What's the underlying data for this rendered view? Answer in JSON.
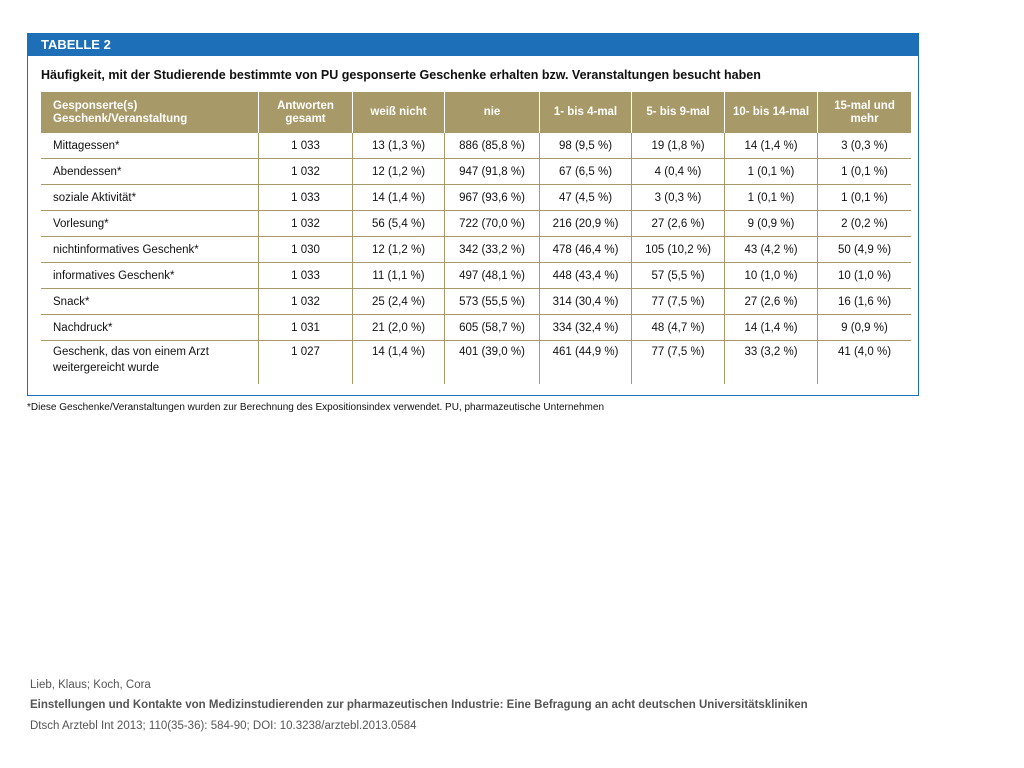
{
  "header": {
    "label": "TABELLE 2",
    "title": "Häufigkeit, mit der Studierende bestimmte von PU gesponserte Geschenke erhalten bzw. Veranstaltungen besucht haben"
  },
  "table": {
    "columns": [
      "Gesponserte(s)\nGeschenk/Veranstaltung",
      "Antworten\ngesamt",
      "weiß nicht",
      "nie",
      "1- bis 4-mal",
      "5- bis 9-mal",
      "10- bis 14-mal",
      "15-mal und\nmehr"
    ],
    "rows": [
      [
        "Mittagessen*",
        "1 033",
        "13 (1,3 %)",
        "886 (85,8 %)",
        "98 (9,5 %)",
        "19 (1,8 %)",
        "14 (1,4 %)",
        "3 (0,3 %)"
      ],
      [
        "Abendessen*",
        "1 032",
        "12 (1,2 %)",
        "947 (91,8 %)",
        "67 (6,5 %)",
        "4 (0,4 %)",
        "1 (0,1 %)",
        "1 (0,1 %)"
      ],
      [
        "soziale Aktivität*",
        "1 033",
        "14 (1,4 %)",
        "967 (93,6 %)",
        "47 (4,5 %)",
        "3 (0,3 %)",
        "1 (0,1 %)",
        "1 (0,1 %)"
      ],
      [
        "Vorlesung*",
        "1 032",
        "56 (5,4 %)",
        "722 (70,0 %)",
        "216 (20,9 %)",
        "27 (2,6 %)",
        "9 (0,9 %)",
        "2 (0,2 %)"
      ],
      [
        "nichtinformatives Geschenk*",
        "1 030",
        "12 (1,2 %)",
        "342 (33,2 %)",
        "478 (46,4 %)",
        "105 (10,2 %)",
        "43 (4,2 %)",
        "50 (4,9 %)"
      ],
      [
        "informatives Geschenk*",
        "1 033",
        "11 (1,1 %)",
        "497 (48,1 %)",
        "448 (43,4 %)",
        "57 (5,5 %)",
        "10 (1,0 %)",
        "10 (1,0 %)"
      ],
      [
        "Snack*",
        "1 032",
        "25 (2,4 %)",
        "573 (55,5 %)",
        "314 (30,4 %)",
        "77 (7,5 %)",
        "27 (2,6 %)",
        "16 (1,6 %)"
      ],
      [
        "Nachdruck*",
        "1 031",
        "21 (2,0 %)",
        "605 (58,7 %)",
        "334 (32,4 %)",
        "48 (4,7 %)",
        "14 (1,4 %)",
        "9 (0,9 %)"
      ],
      [
        "Geschenk, das von einem Arzt\nweitergereicht wurde",
        "1 027",
        "14 (1,4 %)",
        "401 (39,0 %)",
        "461 (44,9 %)",
        "77 (7,5 %)",
        "33 (3,2 %)",
        "41 (4,0 %)"
      ]
    ]
  },
  "footnote": "*Diese Geschenke/Veranstaltungen wurden zur Berechnung des Expositionsindex verwendet. PU, pharmazeutische Unternehmen",
  "citation": {
    "authors": "Lieb, Klaus; Koch, Cora",
    "title": "Einstellungen und Kontakte von Medizinstudierenden zur pharmazeutischen Industrie: Eine Befragung an acht deutschen Universitätskliniken",
    "source": "Dtsch Arztebl Int 2013; 110(35-36): 584-90; DOI: 10.3238/arztebl.2013.0584"
  }
}
